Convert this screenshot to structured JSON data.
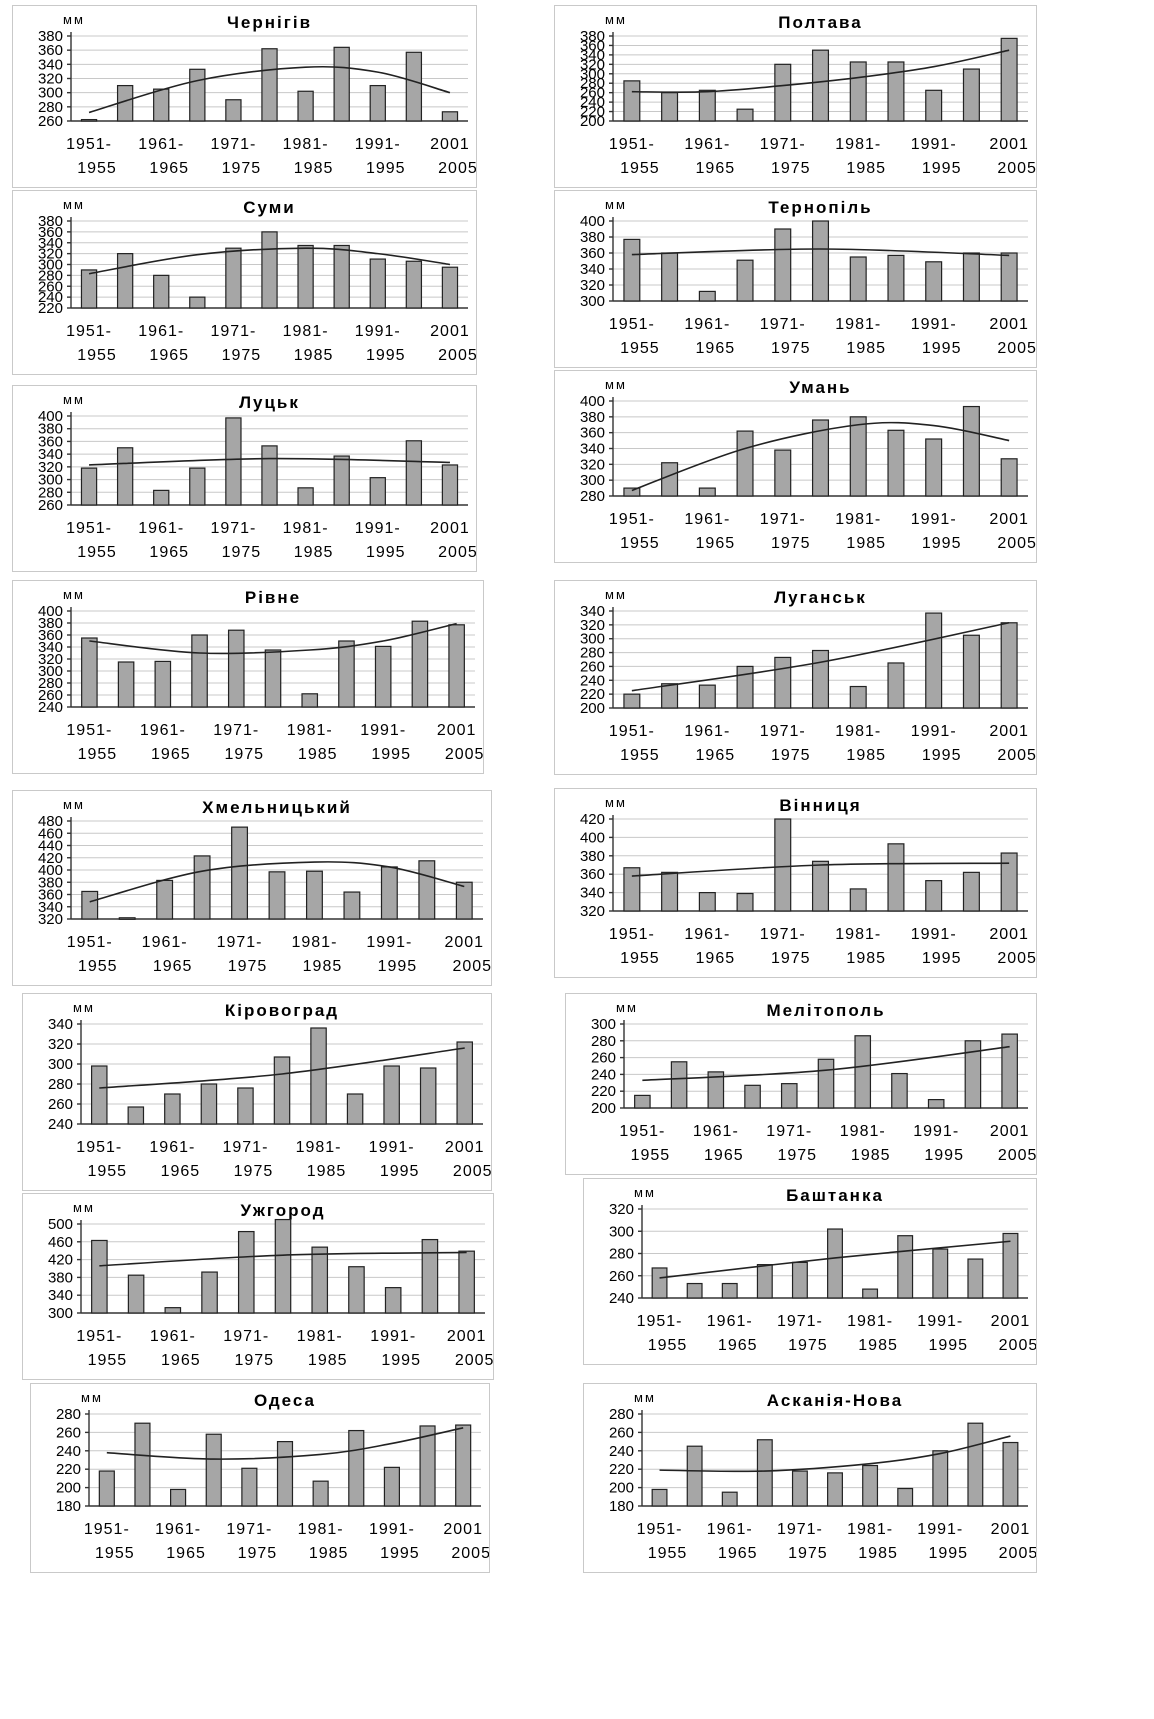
{
  "chart_data": [
    {
      "type": "bar",
      "title": "Чернігів",
      "ylabel": "мм",
      "ylim": [
        260,
        380
      ],
      "yticks": [
        260,
        280,
        300,
        320,
        340,
        360,
        380
      ],
      "values": [
        262,
        310,
        305,
        333,
        290,
        362,
        302,
        364,
        310,
        357,
        273
      ],
      "trend": [
        {
          "x": 0,
          "y": 272
        },
        {
          "x": 3,
          "y": 317
        },
        {
          "x": 6,
          "y": 336
        },
        {
          "x": 8,
          "y": 329
        },
        {
          "x": 10,
          "y": 300
        }
      ]
    },
    {
      "type": "bar",
      "title": "Полтава",
      "ylabel": "мм",
      "ylim": [
        200,
        380
      ],
      "yticks": [
        200,
        220,
        240,
        260,
        280,
        300,
        320,
        340,
        360,
        380
      ],
      "values": [
        285,
        260,
        265,
        225,
        320,
        350,
        325,
        325,
        265,
        310,
        375
      ],
      "trend": [
        {
          "x": 0,
          "y": 262
        },
        {
          "x": 2,
          "y": 262
        },
        {
          "x": 4,
          "y": 275
        },
        {
          "x": 6,
          "y": 292
        },
        {
          "x": 8,
          "y": 315
        },
        {
          "x": 10,
          "y": 350
        }
      ]
    },
    {
      "type": "bar",
      "title": "Суми",
      "ylabel": "мм",
      "ylim": [
        220,
        380
      ],
      "yticks": [
        220,
        240,
        260,
        280,
        300,
        320,
        340,
        360,
        380
      ],
      "values": [
        290,
        320,
        280,
        240,
        330,
        360,
        335,
        335,
        310,
        306,
        295
      ],
      "trend": [
        {
          "x": 0,
          "y": 283
        },
        {
          "x": 3,
          "y": 318
        },
        {
          "x": 6,
          "y": 330
        },
        {
          "x": 8,
          "y": 320
        },
        {
          "x": 10,
          "y": 300
        }
      ]
    },
    {
      "type": "bar",
      "title": "Тернопіль",
      "ylabel": "мм",
      "ylim": [
        300,
        400
      ],
      "yticks": [
        300,
        320,
        340,
        360,
        380,
        400
      ],
      "values": [
        377,
        360,
        312,
        351,
        390,
        400,
        355,
        357,
        349,
        360,
        360
      ],
      "trend": [
        {
          "x": 0,
          "y": 358
        },
        {
          "x": 5,
          "y": 365
        },
        {
          "x": 10,
          "y": 357
        }
      ]
    },
    {
      "type": "bar",
      "title": "Луцьк",
      "ylabel": "мм",
      "ylim": [
        260,
        400
      ],
      "yticks": [
        260,
        280,
        300,
        320,
        340,
        360,
        380,
        400
      ],
      "values": [
        318,
        350,
        283,
        318,
        397,
        353,
        287,
        337,
        303,
        361,
        323
      ],
      "trend": [
        {
          "x": 0,
          "y": 323
        },
        {
          "x": 5,
          "y": 333
        },
        {
          "x": 10,
          "y": 327
        }
      ]
    },
    {
      "type": "bar",
      "title": "Умань",
      "ylabel": "мм",
      "ylim": [
        280,
        400
      ],
      "yticks": [
        280,
        300,
        320,
        340,
        360,
        380,
        400
      ],
      "values": [
        290,
        322,
        290,
        362,
        338,
        376,
        380,
        363,
        352,
        393,
        327
      ],
      "trend": [
        {
          "x": 0,
          "y": 287
        },
        {
          "x": 3,
          "y": 340
        },
        {
          "x": 6,
          "y": 370
        },
        {
          "x": 8,
          "y": 369
        },
        {
          "x": 10,
          "y": 350
        }
      ]
    },
    {
      "type": "bar",
      "title": "Рівне",
      "ylabel": "мм",
      "ylim": [
        240,
        400
      ],
      "yticks": [
        240,
        260,
        280,
        300,
        320,
        340,
        360,
        380,
        400
      ],
      "values": [
        355,
        315,
        316,
        360,
        368,
        335,
        262,
        350,
        341,
        383,
        377
      ],
      "trend": [
        {
          "x": 0,
          "y": 350
        },
        {
          "x": 3,
          "y": 330
        },
        {
          "x": 6,
          "y": 335
        },
        {
          "x": 8,
          "y": 350
        },
        {
          "x": 10,
          "y": 379
        }
      ]
    },
    {
      "type": "bar",
      "title": "Луганськ",
      "ylabel": "мм",
      "ylim": [
        200,
        340
      ],
      "yticks": [
        200,
        220,
        240,
        260,
        280,
        300,
        320,
        340
      ],
      "values": [
        220,
        235,
        233,
        260,
        273,
        283,
        231,
        265,
        337,
        305,
        323
      ],
      "trend": [
        {
          "x": 0,
          "y": 225
        },
        {
          "x": 5,
          "y": 266
        },
        {
          "x": 10,
          "y": 323
        }
      ]
    },
    {
      "type": "bar",
      "title": "Хмельницький",
      "ylabel": "мм",
      "ylim": [
        320,
        480
      ],
      "yticks": [
        320,
        340,
        360,
        380,
        400,
        420,
        440,
        460,
        480
      ],
      "values": [
        365,
        322,
        383,
        423,
        470,
        397,
        398,
        364,
        405,
        415,
        380
      ],
      "trend": [
        {
          "x": 0,
          "y": 348
        },
        {
          "x": 3,
          "y": 398
        },
        {
          "x": 6,
          "y": 413
        },
        {
          "x": 8,
          "y": 405
        },
        {
          "x": 10,
          "y": 373
        }
      ]
    },
    {
      "type": "bar",
      "title": "Вінниця",
      "ylabel": "мм",
      "ylim": [
        320,
        420
      ],
      "yticks": [
        320,
        340,
        360,
        380,
        400,
        420
      ],
      "values": [
        367,
        362,
        340,
        339,
        420,
        374,
        344,
        393,
        353,
        362,
        383
      ],
      "trend": [
        {
          "x": 0,
          "y": 358
        },
        {
          "x": 5,
          "y": 370
        },
        {
          "x": 10,
          "y": 372
        }
      ]
    },
    {
      "type": "bar",
      "title": "Кіровоград",
      "ylabel": "мм",
      "ylim": [
        240,
        340
      ],
      "yticks": [
        240,
        260,
        280,
        300,
        320,
        340
      ],
      "values": [
        298,
        257,
        270,
        280,
        276,
        307,
        336,
        270,
        298,
        296,
        322
      ],
      "trend": [
        {
          "x": 0,
          "y": 276
        },
        {
          "x": 5,
          "y": 290
        },
        {
          "x": 10,
          "y": 316
        }
      ]
    },
    {
      "type": "bar",
      "title": "Мелітополь",
      "ylabel": "мм",
      "ylim": [
        200,
        300
      ],
      "yticks": [
        200,
        220,
        240,
        260,
        280,
        300
      ],
      "values": [
        215,
        255,
        243,
        227,
        229,
        258,
        286,
        241,
        210,
        280,
        288
      ],
      "trend": [
        {
          "x": 0,
          "y": 233
        },
        {
          "x": 5,
          "y": 245
        },
        {
          "x": 10,
          "y": 273
        }
      ]
    },
    {
      "type": "bar",
      "title": "Ужгород",
      "ylabel": "мм",
      "ylim": [
        300,
        500
      ],
      "yticks": [
        300,
        340,
        380,
        420,
        460,
        500
      ],
      "values": [
        463,
        385,
        312,
        392,
        483,
        510,
        448,
        404,
        357,
        465,
        439
      ],
      "trend": [
        {
          "x": 0,
          "y": 406
        },
        {
          "x": 5,
          "y": 430
        },
        {
          "x": 10,
          "y": 436
        }
      ]
    },
    {
      "type": "bar",
      "title": "Баштанка",
      "ylabel": "мм",
      "ylim": [
        240,
        320
      ],
      "yticks": [
        240,
        260,
        280,
        300,
        320
      ],
      "values": [
        267,
        253,
        253,
        270,
        272,
        302,
        248,
        296,
        284,
        275,
        298
      ],
      "trend": [
        {
          "x": 0,
          "y": 258
        },
        {
          "x": 5,
          "y": 276
        },
        {
          "x": 10,
          "y": 291
        }
      ]
    },
    {
      "type": "bar",
      "title": "Одеса",
      "ylabel": "мм",
      "ylim": [
        180,
        280
      ],
      "yticks": [
        180,
        200,
        220,
        240,
        260,
        280
      ],
      "values": [
        218,
        270,
        198,
        258,
        221,
        250,
        207,
        262,
        222,
        267,
        268
      ],
      "trend": [
        {
          "x": 0,
          "y": 238
        },
        {
          "x": 3,
          "y": 231
        },
        {
          "x": 6,
          "y": 236
        },
        {
          "x": 8,
          "y": 248
        },
        {
          "x": 10,
          "y": 265
        }
      ]
    },
    {
      "type": "bar",
      "title": "Асканія-Нова",
      "ylabel": "мм",
      "ylim": [
        180,
        280
      ],
      "yticks": [
        180,
        200,
        220,
        240,
        260,
        280
      ],
      "values": [
        198,
        245,
        195,
        252,
        218,
        216,
        224,
        199,
        240,
        270,
        249
      ],
      "trend": [
        {
          "x": 0,
          "y": 219
        },
        {
          "x": 3,
          "y": 218
        },
        {
          "x": 6,
          "y": 226
        },
        {
          "x": 8,
          "y": 237
        },
        {
          "x": 10,
          "y": 256
        }
      ]
    }
  ],
  "x_labels": {
    "top": [
      "1951-",
      "1961-",
      "1971-",
      "1981-",
      "1991-",
      "2001"
    ],
    "bottom": [
      "1955",
      "1965",
      "1975",
      "1985",
      "1995",
      "2005"
    ]
  }
}
